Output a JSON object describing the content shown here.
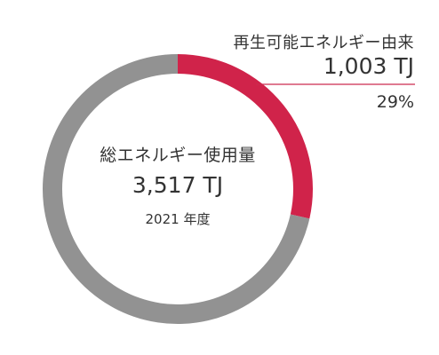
{
  "chart_data": {
    "type": "pie",
    "style": "donut",
    "total": {
      "label": "総エネルギー使用量",
      "value": "3,517 TJ",
      "year": "2021 年度"
    },
    "slices": [
      {
        "label": "再生可能エネルギー由来",
        "value": 1003,
        "display_value": "1,003 TJ",
        "percent": "29%",
        "color": "#d0234a"
      },
      {
        "value": 2514,
        "color": "#929292"
      }
    ],
    "callout_line_color": "#cc2a4f"
  }
}
